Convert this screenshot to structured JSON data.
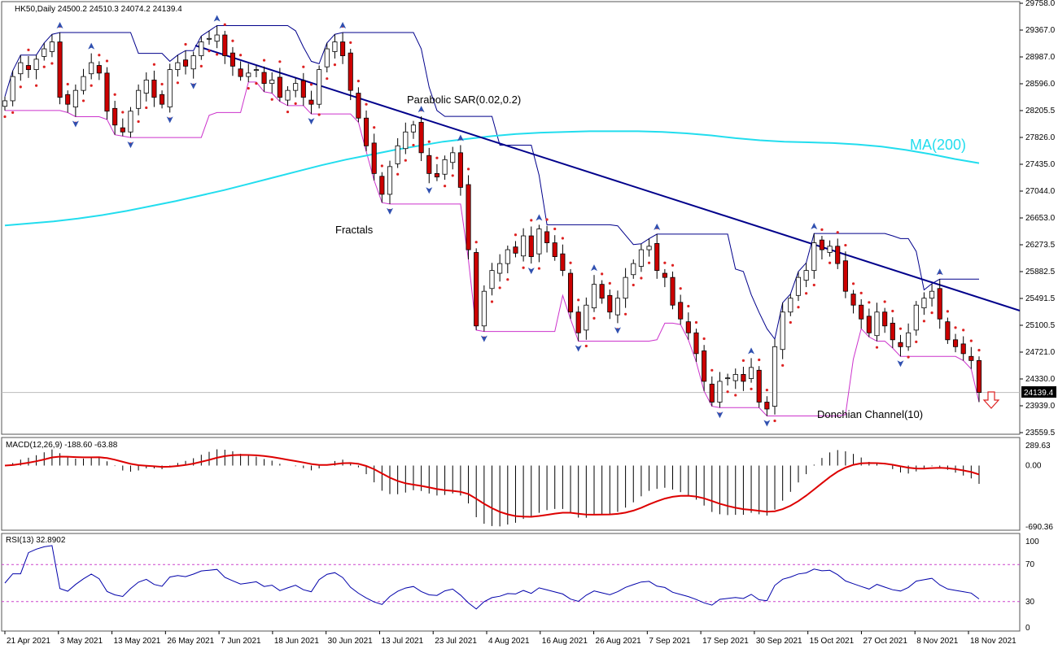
{
  "header": {
    "symbol_line": "HK50,Daily  24500.2 24510.3 24074.2 24139.4"
  },
  "annotations": {
    "parabolic_sar": "Parabolic SAR(0.02,0.2)",
    "fractals": "Fractals",
    "ma": "MA(200)",
    "donchian": "Donchian Channel(10)"
  },
  "price_axis": {
    "ticks": [
      "29758.0",
      "29367.0",
      "28987.0",
      "28596.0",
      "28205.5",
      "27826.0",
      "27435.0",
      "27044.0",
      "26653.0",
      "26273.5",
      "25882.5",
      "25491.5",
      "25100.5",
      "24721.0",
      "24330.0",
      "23939.0",
      "23559.5"
    ],
    "current_price": "24139.4"
  },
  "macd_panel": {
    "label": "MACD(12,26,9) -188.60 -63.88",
    "ticks": [
      "289.63",
      "0.00",
      "-690.36"
    ]
  },
  "rsi_panel": {
    "label": "RSI(13) 32.8902",
    "ticks": [
      "100",
      "70",
      "30",
      "0"
    ]
  },
  "x_axis": {
    "dates": [
      "21 Apr 2021",
      "3 May 2021",
      "13 May 2021",
      "26 May 2021",
      "7 Jun 2021",
      "18 Jun 2021",
      "30 Jun 2021",
      "13 Jul 2021",
      "23 Jul 2021",
      "4 Aug 2021",
      "16 Aug 2021",
      "26 Aug 2021",
      "7 Sep 2021",
      "17 Sep 2021",
      "30 Sep 2021",
      "15 Oct 2021",
      "27 Oct 2021",
      "8 Nov 2021",
      "18 Nov 2021"
    ]
  },
  "colors": {
    "bull_candle": "#ffffff",
    "bear_candle": "#cc0000",
    "ma200": "#22ddee",
    "donchian_upper": "#00008b",
    "donchian_lower": "#cc33cc",
    "sar": "#dd2222",
    "trendline": "#00008b",
    "fractal": "#3050b0",
    "macd_signal": "#dd0000",
    "rsi_line": "#0000aa",
    "level_line": "#cc44cc"
  },
  "chart_data": {
    "type": "candlestick",
    "title": "HK50,Daily",
    "ohlc_last": {
      "open": 24500.2,
      "high": 24510.3,
      "low": 24074.2,
      "close": 24139.4
    },
    "ylim": [
      23559.5,
      29758.0
    ],
    "grid": false,
    "closes": [
      28350,
      28700,
      28900,
      28800,
      28950,
      29100,
      29200,
      28400,
      28300,
      28500,
      28700,
      28900,
      28750,
      28200,
      28000,
      27900,
      28200,
      28500,
      28650,
      28400,
      28300,
      28800,
      28900,
      28850,
      29000,
      29200,
      29250,
      29300,
      29000,
      28850,
      28700,
      28750,
      28800,
      28600,
      28650,
      28400,
      28500,
      28600,
      28400,
      28300,
      28800,
      29100,
      29200,
      29000,
      28500,
      28100,
      27700,
      27300,
      27000,
      27400,
      27700,
      27900,
      28000,
      27600,
      27300,
      27250,
      27500,
      27600,
      27100,
      26200,
      25100,
      25600,
      25900,
      26000,
      26200,
      26150,
      26400,
      26100,
      26500,
      26300,
      26100,
      25900,
      25300,
      25000,
      25400,
      25700,
      25500,
      25300,
      25500,
      25800,
      26000,
      26200,
      26250,
      25900,
      25800,
      25400,
      25200,
      25000,
      24700,
      24300,
      24000,
      24300,
      24350,
      24400,
      24300,
      24500,
      24000,
      23900,
      24800,
      25300,
      25500,
      25800,
      25900,
      26300,
      26200,
      26250,
      26000,
      25600,
      25400,
      25200,
      25000,
      25300,
      25100,
      24900,
      24800,
      25000,
      25400,
      25500,
      25600,
      25200,
      24900,
      24800,
      24700,
      24600,
      24139.4
    ],
    "series": [
      {
        "name": "MA(200)",
        "values": [
          26550,
          26580,
          26610,
          26650,
          26700,
          26760,
          26830,
          26900,
          26980,
          27060,
          27150,
          27240,
          27330,
          27420,
          27500,
          27570,
          27640,
          27700,
          27760,
          27800,
          27840,
          27870,
          27890,
          27900,
          27910,
          27910,
          27910,
          27900,
          27880,
          27850,
          27810,
          27780,
          27760,
          27750,
          27740,
          27720,
          27690,
          27640,
          27580,
          27510,
          27450
        ]
      },
      {
        "name": "Donchian Channel(10) upper",
        "values": []
      },
      {
        "name": "Donchian Channel(10) lower",
        "values": []
      }
    ],
    "macd": {
      "main": -188.6,
      "signal": -63.88,
      "ylim": [
        -690.36,
        289.63
      ]
    },
    "rsi": {
      "value": 32.8902,
      "levels": [
        30,
        70
      ],
      "ylim": [
        0,
        100
      ]
    }
  }
}
